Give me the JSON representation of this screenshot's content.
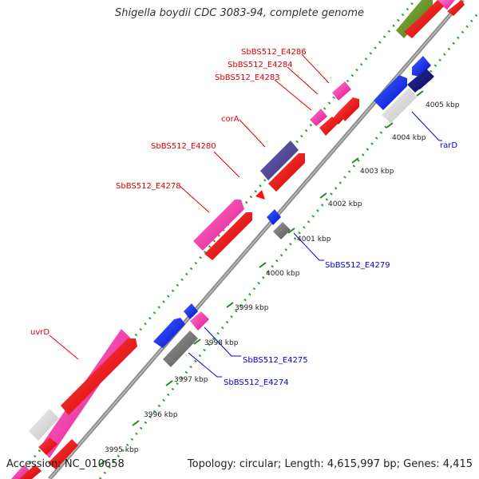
{
  "title": "Shigella boydii CDC 3083-94, complete genome",
  "footer": {
    "accession": "Accession: NC_010658",
    "summary": "Topology: circular; Length: 4,615,997 bp; Genes: 4,415"
  },
  "colors": {
    "forward_label": "#dd0000",
    "reverse_label": "#0000dd",
    "tick": "#228822",
    "backbone": "#8a8a8a"
  },
  "ticks": [
    "3995 kbp",
    "3996 kbp",
    "3997 kbp",
    "3998 kbp",
    "3999 kbp",
    "4000 kbp",
    "4001 kbp",
    "4002 kbp",
    "4003 kbp",
    "4004 kbp",
    "4005 kbp"
  ],
  "forward_labels": [
    "SbBS512_E4286",
    "SbBS512_E4284",
    "SbBS512_E4283",
    "corA",
    "SbBS512_E4280",
    "SbBS512_E4278",
    "uvrD"
  ],
  "reverse_labels": [
    "rarD",
    "SbBS512_E4279",
    "SbBS512_E4275",
    "SbBS512_E4274"
  ]
}
